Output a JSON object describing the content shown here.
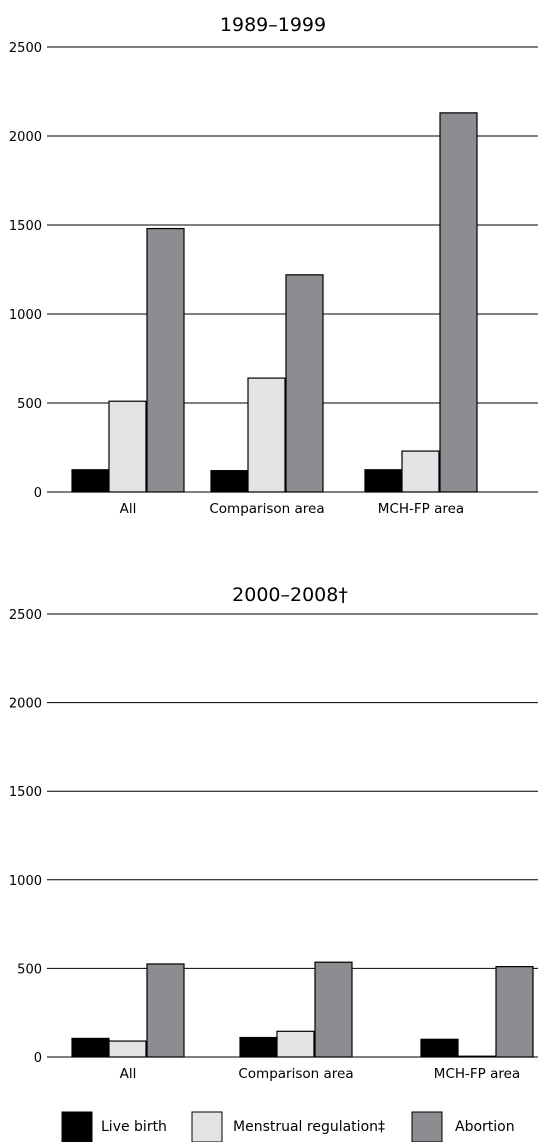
{
  "chart_data": [
    {
      "type": "bar",
      "title": "1989–1999",
      "categories": [
        "All",
        "Comparison area",
        "MCH-FP area"
      ],
      "series": [
        {
          "name": "Live birth",
          "values": [
            125,
            120,
            125
          ]
        },
        {
          "name": "Menstrual regulation‡",
          "values": [
            510,
            640,
            230
          ]
        },
        {
          "name": "Abortion",
          "values": [
            1480,
            1220,
            2130
          ]
        }
      ],
      "ylim": [
        0,
        2500
      ],
      "yticks": [
        "0",
        "500",
        "1000",
        "1500",
        "2000",
        "2500"
      ],
      "grid": true
    },
    {
      "type": "bar",
      "title": "2000–2008†",
      "categories": [
        "All",
        "Comparison area",
        "MCH-FP area"
      ],
      "series": [
        {
          "name": "Live birth",
          "values": [
            105,
            110,
            100
          ]
        },
        {
          "name": "Menstrual regulation‡",
          "values": [
            90,
            145,
            0
          ]
        },
        {
          "name": "Abortion",
          "values": [
            525,
            535,
            510
          ]
        }
      ],
      "ylim": [
        0,
        2500
      ],
      "yticks": [
        "0",
        "500",
        "1000",
        "1500",
        "2000",
        "2500"
      ],
      "grid": true
    }
  ],
  "legend": {
    "placement": "bottom",
    "items": [
      {
        "label": "Live birth",
        "color": "#000000"
      },
      {
        "label": "Menstrual regulation‡",
        "color": "#e2e3e5"
      },
      {
        "label": "Abortion",
        "color": "#8c8d91"
      }
    ]
  },
  "colors": [
    "#000000",
    "#e2e3e5",
    "#8c8d91"
  ]
}
